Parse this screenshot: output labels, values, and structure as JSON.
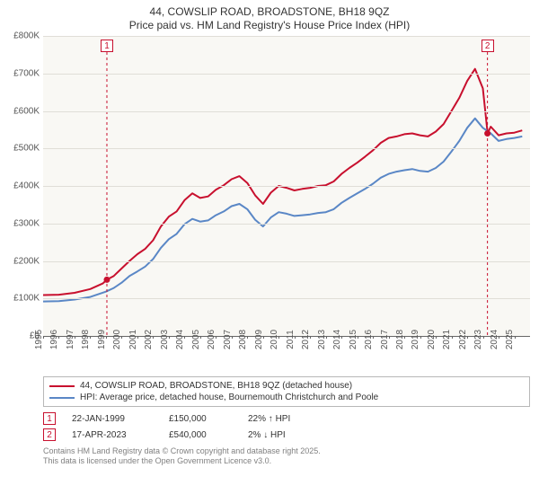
{
  "title_line1": "44, COWSLIP ROAD, BROADSTONE, BH18 9QZ",
  "title_line2": "Price paid vs. HM Land Registry's House Price Index (HPI)",
  "chart": {
    "type": "line",
    "background_color": "#f9f8f4",
    "grid_color": "#e0ded7",
    "axis_color": "#666666",
    "xlim": [
      1995,
      2026
    ],
    "ylim": [
      0,
      800000
    ],
    "ytick_step": 100000,
    "yticks": [
      "£0",
      "£100K",
      "£200K",
      "£300K",
      "£400K",
      "£500K",
      "£600K",
      "£700K",
      "£800K"
    ],
    "xticks": [
      1995,
      1996,
      1997,
      1998,
      1999,
      2000,
      2001,
      2002,
      2003,
      2004,
      2005,
      2006,
      2007,
      2008,
      2009,
      2010,
      2011,
      2012,
      2013,
      2014,
      2015,
      2016,
      2017,
      2018,
      2019,
      2020,
      2021,
      2022,
      2023,
      2024,
      2025
    ],
    "tick_fontsize": 10,
    "series": [
      {
        "name": "44, COWSLIP ROAD, BROADSTONE, BH18 9QZ (detached house)",
        "color": "#c8102e",
        "line_width": 2,
        "data": [
          [
            1995,
            109000
          ],
          [
            1996,
            110000
          ],
          [
            1997,
            115000
          ],
          [
            1998,
            125000
          ],
          [
            1998.8,
            140000
          ],
          [
            1999.06,
            150000
          ],
          [
            1999.5,
            160000
          ],
          [
            2000,
            180000
          ],
          [
            2000.5,
            200000
          ],
          [
            2001,
            218000
          ],
          [
            2001.5,
            232000
          ],
          [
            2002,
            255000
          ],
          [
            2002.5,
            292000
          ],
          [
            2003,
            318000
          ],
          [
            2003.5,
            332000
          ],
          [
            2004,
            362000
          ],
          [
            2004.5,
            380000
          ],
          [
            2005,
            368000
          ],
          [
            2005.5,
            372000
          ],
          [
            2006,
            390000
          ],
          [
            2006.5,
            402000
          ],
          [
            2007,
            418000
          ],
          [
            2007.5,
            426000
          ],
          [
            2008,
            408000
          ],
          [
            2008.5,
            375000
          ],
          [
            2009,
            352000
          ],
          [
            2009.5,
            382000
          ],
          [
            2010,
            400000
          ],
          [
            2010.5,
            395000
          ],
          [
            2011,
            388000
          ],
          [
            2011.5,
            392000
          ],
          [
            2012,
            395000
          ],
          [
            2012.5,
            400000
          ],
          [
            2013,
            402000
          ],
          [
            2013.5,
            412000
          ],
          [
            2014,
            432000
          ],
          [
            2014.5,
            448000
          ],
          [
            2015,
            462000
          ],
          [
            2015.5,
            478000
          ],
          [
            2016,
            495000
          ],
          [
            2016.5,
            515000
          ],
          [
            2017,
            528000
          ],
          [
            2017.5,
            532000
          ],
          [
            2018,
            538000
          ],
          [
            2018.5,
            540000
          ],
          [
            2019,
            535000
          ],
          [
            2019.5,
            532000
          ],
          [
            2020,
            545000
          ],
          [
            2020.5,
            565000
          ],
          [
            2021,
            600000
          ],
          [
            2021.5,
            635000
          ],
          [
            2022,
            680000
          ],
          [
            2022.5,
            712000
          ],
          [
            2023,
            660000
          ],
          [
            2023.3,
            540000
          ],
          [
            2023.5,
            558000
          ],
          [
            2024,
            535000
          ],
          [
            2024.5,
            540000
          ],
          [
            2025,
            542000
          ],
          [
            2025.5,
            548000
          ]
        ]
      },
      {
        "name": "HPI: Average price, detached house, Bournemouth Christchurch and Poole",
        "color": "#5a87c6",
        "line_width": 2,
        "data": [
          [
            1995,
            92000
          ],
          [
            1996,
            93000
          ],
          [
            1997,
            97000
          ],
          [
            1998,
            104000
          ],
          [
            1999,
            118000
          ],
          [
            1999.5,
            128000
          ],
          [
            2000,
            142000
          ],
          [
            2000.5,
            160000
          ],
          [
            2001,
            172000
          ],
          [
            2001.5,
            185000
          ],
          [
            2002,
            205000
          ],
          [
            2002.5,
            235000
          ],
          [
            2003,
            258000
          ],
          [
            2003.5,
            272000
          ],
          [
            2004,
            298000
          ],
          [
            2004.5,
            312000
          ],
          [
            2005,
            305000
          ],
          [
            2005.5,
            308000
          ],
          [
            2006,
            322000
          ],
          [
            2006.5,
            332000
          ],
          [
            2007,
            346000
          ],
          [
            2007.5,
            352000
          ],
          [
            2008,
            338000
          ],
          [
            2008.5,
            310000
          ],
          [
            2009,
            292000
          ],
          [
            2009.5,
            316000
          ],
          [
            2010,
            330000
          ],
          [
            2010.5,
            326000
          ],
          [
            2011,
            320000
          ],
          [
            2011.5,
            322000
          ],
          [
            2012,
            324000
          ],
          [
            2012.5,
            328000
          ],
          [
            2013,
            330000
          ],
          [
            2013.5,
            338000
          ],
          [
            2014,
            355000
          ],
          [
            2014.5,
            368000
          ],
          [
            2015,
            380000
          ],
          [
            2015.5,
            392000
          ],
          [
            2016,
            406000
          ],
          [
            2016.5,
            422000
          ],
          [
            2017,
            432000
          ],
          [
            2017.5,
            438000
          ],
          [
            2018,
            442000
          ],
          [
            2018.5,
            445000
          ],
          [
            2019,
            440000
          ],
          [
            2019.5,
            438000
          ],
          [
            2020,
            448000
          ],
          [
            2020.5,
            465000
          ],
          [
            2021,
            492000
          ],
          [
            2021.5,
            520000
          ],
          [
            2022,
            555000
          ],
          [
            2022.5,
            580000
          ],
          [
            2023,
            555000
          ],
          [
            2023.5,
            540000
          ],
          [
            2024,
            520000
          ],
          [
            2024.5,
            525000
          ],
          [
            2025,
            528000
          ],
          [
            2025.5,
            532000
          ]
        ]
      }
    ],
    "sale_markers": [
      {
        "box_label": "1",
        "x": 1999.06,
        "y": 150000,
        "color": "#c8102e"
      },
      {
        "box_label": "2",
        "x": 2023.29,
        "y": 540000,
        "color": "#c8102e"
      }
    ]
  },
  "legend": {
    "items": [
      {
        "color": "#c8102e",
        "label": "44, COWSLIP ROAD, BROADSTONE, BH18 9QZ (detached house)"
      },
      {
        "color": "#5a87c6",
        "label": "HPI: Average price, detached house, Bournemouth Christchurch and Poole"
      }
    ]
  },
  "datapoints": [
    {
      "box_label": "1",
      "box_color": "#c8102e",
      "date": "22-JAN-1999",
      "price": "£150,000",
      "diff": "22% ↑ HPI"
    },
    {
      "box_label": "2",
      "box_color": "#c8102e",
      "date": "17-APR-2023",
      "price": "£540,000",
      "diff": "2% ↓ HPI"
    }
  ],
  "footer_line1": "Contains HM Land Registry data © Crown copyright and database right 2025.",
  "footer_line2": "This data is licensed under the Open Government Licence v3.0."
}
